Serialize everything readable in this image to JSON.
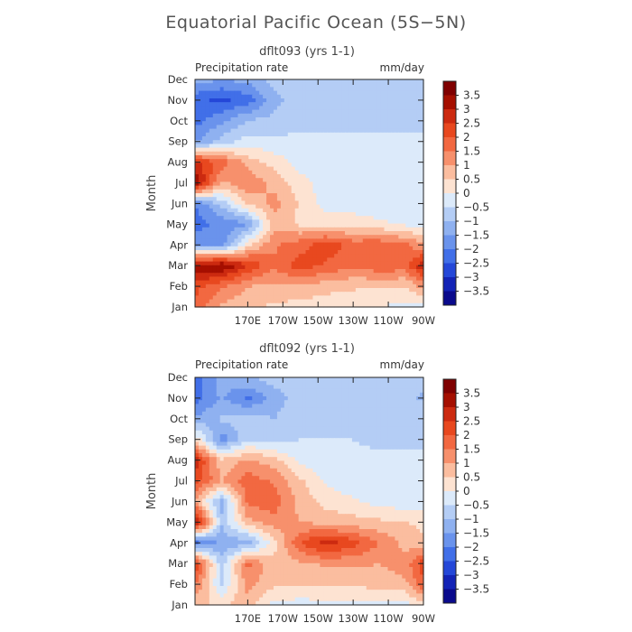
{
  "chart_data": {
    "type": "heatmap",
    "title": "Equatorial Pacific Ocean (5S−5N)",
    "xlabel": "",
    "ylabel": "Month",
    "xticks": [
      "170E",
      "170W",
      "150W",
      "130W",
      "110W",
      "90W"
    ],
    "yticks": [
      "Jan",
      "Feb",
      "Mar",
      "Apr",
      "May",
      "Jun",
      "Jul",
      "Aug",
      "Sep",
      "Oct",
      "Nov",
      "Dec"
    ],
    "colorbar": {
      "labels": [
        "3.5",
        "3",
        "2.5",
        "2",
        "1.5",
        "1",
        "0.5",
        "0",
        "−0.5",
        "−1",
        "−1.5",
        "−2",
        "−2.5",
        "−3",
        "−3.5"
      ],
      "colors": [
        "#7f0000",
        "#a50f00",
        "#cc2a10",
        "#e8481f",
        "#f26841",
        "#f7906c",
        "#fbbd9f",
        "#fde3d2",
        "#dceafa",
        "#b4cdf5",
        "#8fb1f0",
        "#6a93ec",
        "#416fe8",
        "#2447d8",
        "#1323b6",
        "#0a0a8c"
      ]
    },
    "panels": [
      {
        "subtitle": "dflt093 (yrs 1-1)",
        "variable": "Precipitation rate",
        "units": "mm/day",
        "lon_values": [
          140,
          155,
          170,
          185,
          200,
          215,
          230,
          245,
          260,
          270
        ],
        "month_values": [
          1,
          2,
          3,
          4,
          5,
          6,
          7,
          8,
          9,
          10,
          11,
          12
        ],
        "z": [
          [
            1.8,
            0.9,
            0.6,
            0.4,
            0.3,
            0.2,
            0.1,
            0.0,
            -0.2,
            -0.2
          ],
          [
            2.2,
            1.6,
            1.0,
            0.9,
            0.9,
            0.7,
            0.6,
            0.5,
            0.5,
            1.2
          ],
          [
            3.4,
            3.6,
            2.5,
            1.6,
            2.3,
            1.9,
            1.6,
            1.9,
            1.8,
            3.0
          ],
          [
            -1.6,
            -1.8,
            0.4,
            1.4,
            1.8,
            2.3,
            1.8,
            1.9,
            1.6,
            1.0
          ],
          [
            -2.2,
            -1.9,
            -1.6,
            0.8,
            0.4,
            0.3,
            0.3,
            0.1,
            -0.1,
            -0.1
          ],
          [
            -2.0,
            -0.8,
            0.6,
            1.2,
            0.4,
            -0.2,
            -0.3,
            -0.3,
            -0.3,
            -0.3
          ],
          [
            3.5,
            0.9,
            1.4,
            0.8,
            0.2,
            -0.3,
            -0.4,
            -0.4,
            -0.4,
            -0.4
          ],
          [
            2.6,
            1.8,
            0.8,
            0.3,
            -0.2,
            -0.4,
            -0.4,
            -0.4,
            -0.4,
            -0.4
          ],
          [
            -1.6,
            -0.8,
            -0.3,
            -0.4,
            -0.4,
            -0.4,
            -0.4,
            -0.4,
            -0.4,
            -0.4
          ],
          [
            -2.2,
            -1.6,
            -1.0,
            -0.8,
            -0.6,
            -0.6,
            -0.6,
            -0.6,
            -0.6,
            -0.6
          ],
          [
            -2.4,
            -2.6,
            -2.3,
            -1.2,
            -0.7,
            -0.7,
            -0.7,
            -0.8,
            -0.8,
            -0.8
          ],
          [
            -1.2,
            -1.5,
            -1.3,
            -0.8,
            -0.7,
            -0.7,
            -0.7,
            -0.7,
            -0.8,
            -0.8
          ]
        ]
      },
      {
        "subtitle": "dflt092 (yrs 1-1)",
        "variable": "Precipitation rate",
        "units": "mm/day",
        "lon_values": [
          140,
          155,
          170,
          185,
          200,
          215,
          230,
          245,
          260,
          270
        ],
        "month_values": [
          1,
          2,
          3,
          4,
          5,
          6,
          7,
          8,
          9,
          10,
          11,
          12
        ],
        "z": [
          [
            0.6,
            0.4,
            0.8,
            -0.2,
            -0.2,
            -0.2,
            -0.2,
            -0.2,
            -0.2,
            0.3
          ],
          [
            1.6,
            -0.6,
            1.2,
            0.6,
            0.5,
            0.6,
            0.6,
            0.7,
            0.9,
            1.9
          ],
          [
            2.6,
            -0.8,
            1.7,
            0.6,
            0.9,
            1.1,
            1.1,
            1.0,
            1.3,
            2.3
          ],
          [
            -2.2,
            -1.4,
            -1.3,
            0.3,
            2.0,
            2.8,
            2.2,
            1.5,
            0.8,
            0.6
          ],
          [
            3.4,
            -0.9,
            0.8,
            1.3,
            1.0,
            0.8,
            0.7,
            0.6,
            0.5,
            0.4
          ],
          [
            0.9,
            -1.2,
            1.7,
            1.8,
            0.8,
            0.3,
            0.1,
            -0.2,
            -0.3,
            -0.3
          ],
          [
            2.3,
            1.0,
            1.8,
            1.4,
            0.6,
            -0.1,
            -0.4,
            -0.4,
            -0.4,
            -0.4
          ],
          [
            2.8,
            0.6,
            1.1,
            0.7,
            -0.2,
            -0.4,
            -0.4,
            -0.4,
            -0.4,
            -0.4
          ],
          [
            0.4,
            -1.8,
            -0.6,
            -0.8,
            -0.5,
            -0.5,
            -0.5,
            -0.6,
            -0.6,
            -0.6
          ],
          [
            -1.4,
            -0.9,
            -0.8,
            -1.0,
            -0.7,
            -0.7,
            -0.7,
            -0.7,
            -0.7,
            -0.7
          ],
          [
            -2.3,
            -1.4,
            -2.1,
            -1.2,
            -0.8,
            -0.8,
            -0.8,
            -0.8,
            -0.8,
            -1.1
          ],
          [
            -2.2,
            -1.3,
            -1.0,
            -0.8,
            -0.8,
            -0.7,
            -0.7,
            -0.7,
            -0.7,
            -0.7
          ]
        ]
      }
    ]
  }
}
